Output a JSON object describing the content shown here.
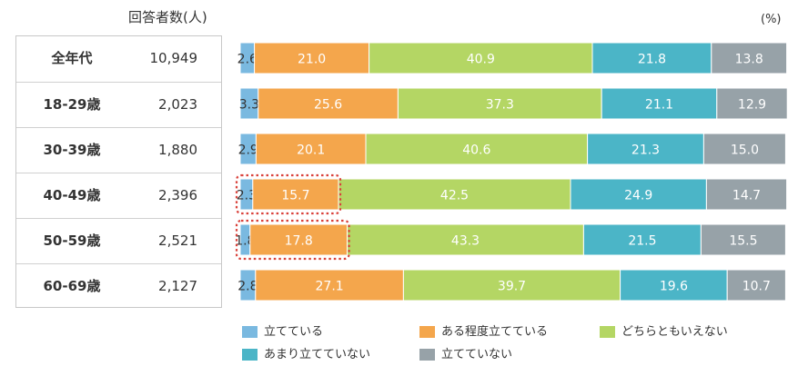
{
  "header": {
    "count_header": "回答者数(人)",
    "unit": "(%)"
  },
  "colors": {
    "very": "#7ab9e0",
    "somewhat": "#f4a64c",
    "neutral": "#b4d664",
    "not_much": "#4bb5c7",
    "not_at_all": "#97a2a8",
    "dotted_highlight": "#d9413a"
  },
  "table": {
    "rows": [
      {
        "label": "全年代",
        "count": "10,949"
      },
      {
        "label": "18-29歳",
        "count": "2,023"
      },
      {
        "label": "30-39歳",
        "count": "1,880"
      },
      {
        "label": "40-49歳",
        "count": "2,396"
      },
      {
        "label": "50-59歳",
        "count": "2,521"
      },
      {
        "label": "60-69歳",
        "count": "2,127"
      }
    ]
  },
  "legend": [
    {
      "label": "立てている",
      "color": "#7ab9e0"
    },
    {
      "label": "ある程度立てている",
      "color": "#f4a64c"
    },
    {
      "label": "どちらともいえない",
      "color": "#b4d664"
    },
    {
      "label": "あまり立てていない",
      "color": "#4bb5c7"
    },
    {
      "label": "立てていない",
      "color": "#97a2a8"
    }
  ],
  "chart_data": {
    "type": "bar",
    "orientation": "horizontal",
    "stacked": "100%",
    "unit": "(%)",
    "categories": [
      "全年代",
      "18-29歳",
      "30-39歳",
      "40-49歳",
      "50-59歳",
      "60-69歳"
    ],
    "series": [
      {
        "name": "立てている",
        "values": [
          2.6,
          3.3,
          2.9,
          2.3,
          1.8,
          2.8
        ]
      },
      {
        "name": "ある程度立てている",
        "values": [
          21.0,
          25.6,
          20.1,
          15.7,
          17.8,
          27.1
        ]
      },
      {
        "name": "どちらともいえない",
        "values": [
          40.9,
          37.3,
          40.6,
          42.5,
          43.3,
          39.7
        ]
      },
      {
        "name": "あまり立てていない",
        "values": [
          21.8,
          21.1,
          21.3,
          24.9,
          21.5,
          19.6
        ]
      },
      {
        "name": "立てていない",
        "values": [
          13.8,
          12.9,
          15.0,
          14.7,
          15.5,
          10.7
        ]
      }
    ],
    "highlighted_categories": [
      "40-49歳",
      "50-59歳"
    ],
    "highlighted_series_through": "ある程度立てている",
    "legend_position": "bottom",
    "grid": false
  }
}
